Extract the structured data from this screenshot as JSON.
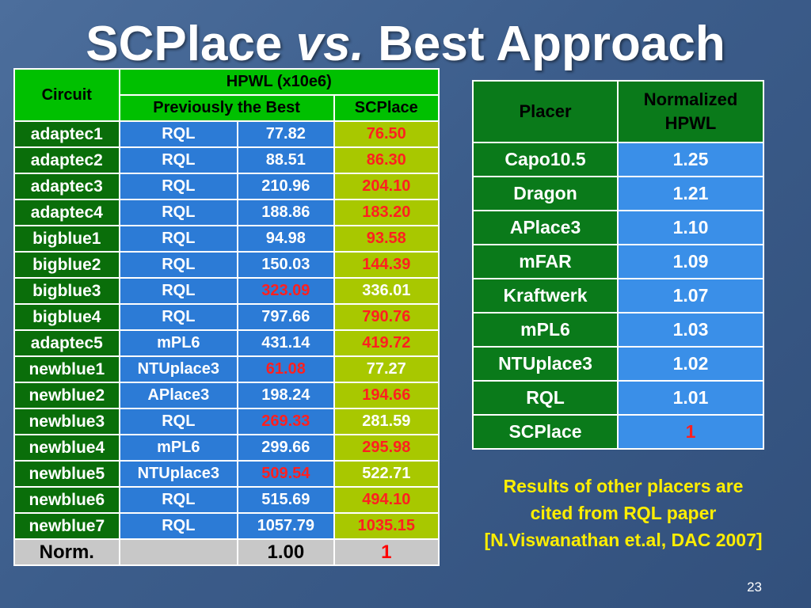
{
  "slide": {
    "title_part1": "SCPlace",
    "title_vs": "vs.",
    "title_part2": "Best Approach",
    "page_number": "23"
  },
  "hpwl_table": {
    "header_circuit": "Circuit",
    "header_hpwl": "HPWL (x10e6)",
    "header_previous": "Previously the Best",
    "header_scplace": "SCPlace",
    "rows": [
      {
        "circuit": "adaptec1",
        "method": "RQL",
        "previous": "77.82",
        "scplace": "76.50",
        "best": "scplace"
      },
      {
        "circuit": "adaptec2",
        "method": "RQL",
        "previous": "88.51",
        "scplace": "86.30",
        "best": "scplace"
      },
      {
        "circuit": "adaptec3",
        "method": "RQL",
        "previous": "210.96",
        "scplace": "204.10",
        "best": "scplace"
      },
      {
        "circuit": "adaptec4",
        "method": "RQL",
        "previous": "188.86",
        "scplace": "183.20",
        "best": "scplace"
      },
      {
        "circuit": "bigblue1",
        "method": "RQL",
        "previous": "94.98",
        "scplace": "93.58",
        "best": "scplace"
      },
      {
        "circuit": "bigblue2",
        "method": "RQL",
        "previous": "150.03",
        "scplace": "144.39",
        "best": "scplace"
      },
      {
        "circuit": "bigblue3",
        "method": "RQL",
        "previous": "323.09",
        "scplace": "336.01",
        "best": "previous"
      },
      {
        "circuit": "bigblue4",
        "method": "RQL",
        "previous": "797.66",
        "scplace": "790.76",
        "best": "scplace"
      },
      {
        "circuit": "adaptec5",
        "method": "mPL6",
        "previous": "431.14",
        "scplace": "419.72",
        "best": "scplace"
      },
      {
        "circuit": "newblue1",
        "method": "NTUplace3",
        "previous": "61.08",
        "scplace": "77.27",
        "best": "previous"
      },
      {
        "circuit": "newblue2",
        "method": "APlace3",
        "previous": "198.24",
        "scplace": "194.66",
        "best": "scplace"
      },
      {
        "circuit": "newblue3",
        "method": "RQL",
        "previous": "269.33",
        "scplace": "281.59",
        "best": "previous"
      },
      {
        "circuit": "newblue4",
        "method": "mPL6",
        "previous": "299.66",
        "scplace": "295.98",
        "best": "scplace"
      },
      {
        "circuit": "newblue5",
        "method": "NTUplace3",
        "previous": "509.54",
        "scplace": "522.71",
        "best": "previous"
      },
      {
        "circuit": "newblue6",
        "method": "RQL",
        "previous": "515.69",
        "scplace": "494.10",
        "best": "scplace"
      },
      {
        "circuit": "newblue7",
        "method": "RQL",
        "previous": "1057.79",
        "scplace": "1035.15",
        "best": "scplace"
      }
    ],
    "norm": {
      "label": "Norm.",
      "method": "",
      "previous": "1.00",
      "scplace": "1"
    }
  },
  "placer_table": {
    "header_placer": "Placer",
    "header_hpwl_line1": "Normalized",
    "header_hpwl_line2": "HPWL",
    "rows": [
      {
        "placer": "Capo10.5",
        "hpwl": "1.25"
      },
      {
        "placer": "Dragon",
        "hpwl": "1.21"
      },
      {
        "placer": "APlace3",
        "hpwl": "1.10"
      },
      {
        "placer": "mFAR",
        "hpwl": "1.09"
      },
      {
        "placer": "Kraftwerk",
        "hpwl": "1.07"
      },
      {
        "placer": "mPL6",
        "hpwl": "1.03"
      },
      {
        "placer": "NTUplace3",
        "hpwl": "1.02"
      },
      {
        "placer": "RQL",
        "hpwl": "1.01"
      },
      {
        "placer": "SCPlace",
        "hpwl": "1",
        "highlight": true
      }
    ]
  },
  "note": {
    "line1": "Results of other placers are",
    "line2": "cited from RQL paper",
    "line3": "[N.Viswanathan et.al, DAC 2007]"
  }
}
